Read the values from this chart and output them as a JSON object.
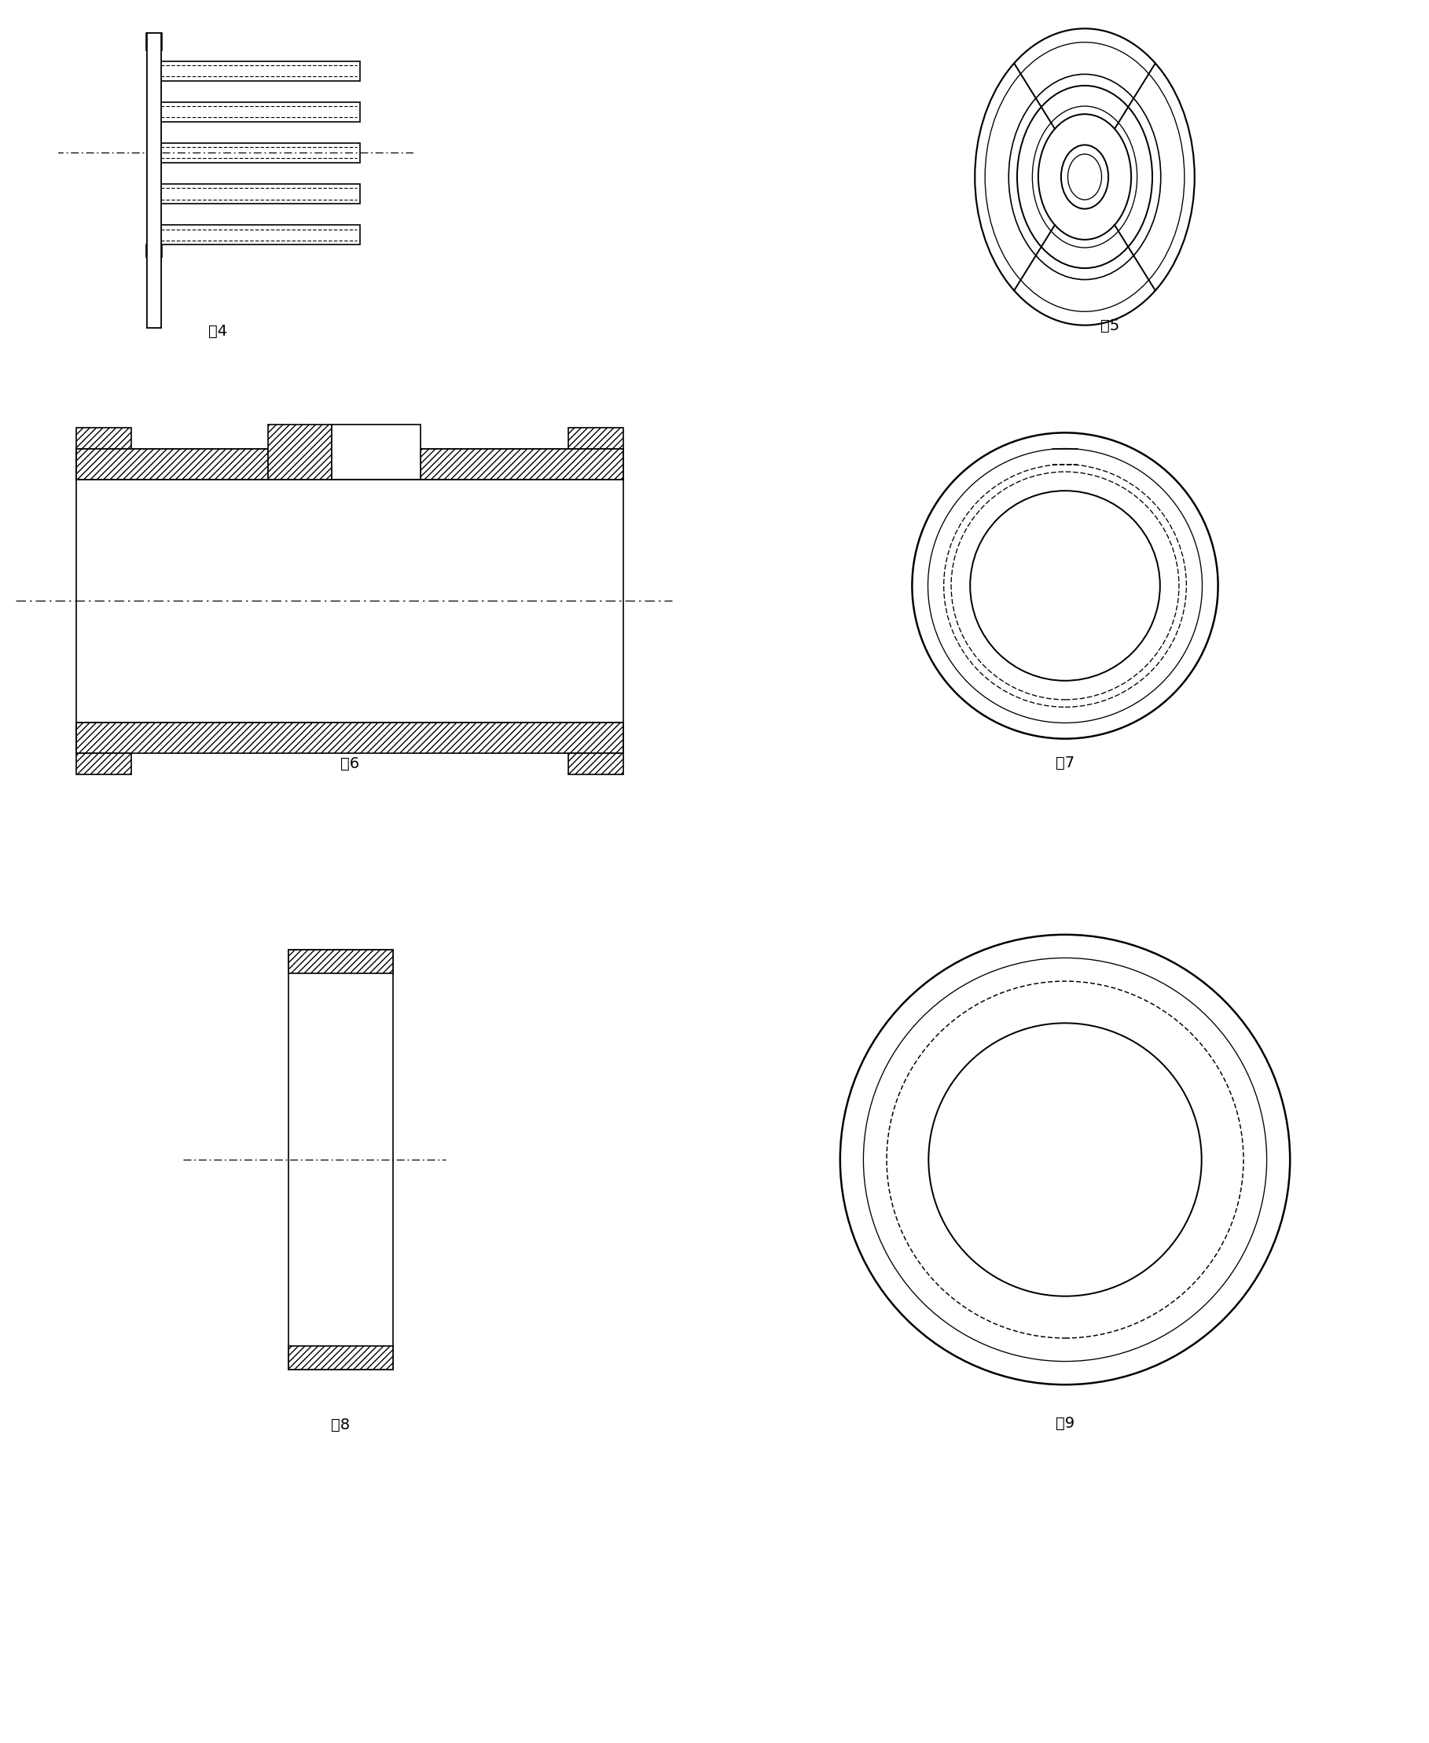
{
  "bg_color": "#ffffff",
  "line_color": "#000000",
  "fig4_label": "图4",
  "fig5_label": "图5",
  "fig6_label": "图6",
  "fig7_label": "图7",
  "fig8_label": "图8",
  "fig9_label": "图9",
  "label_fontsize": 14
}
